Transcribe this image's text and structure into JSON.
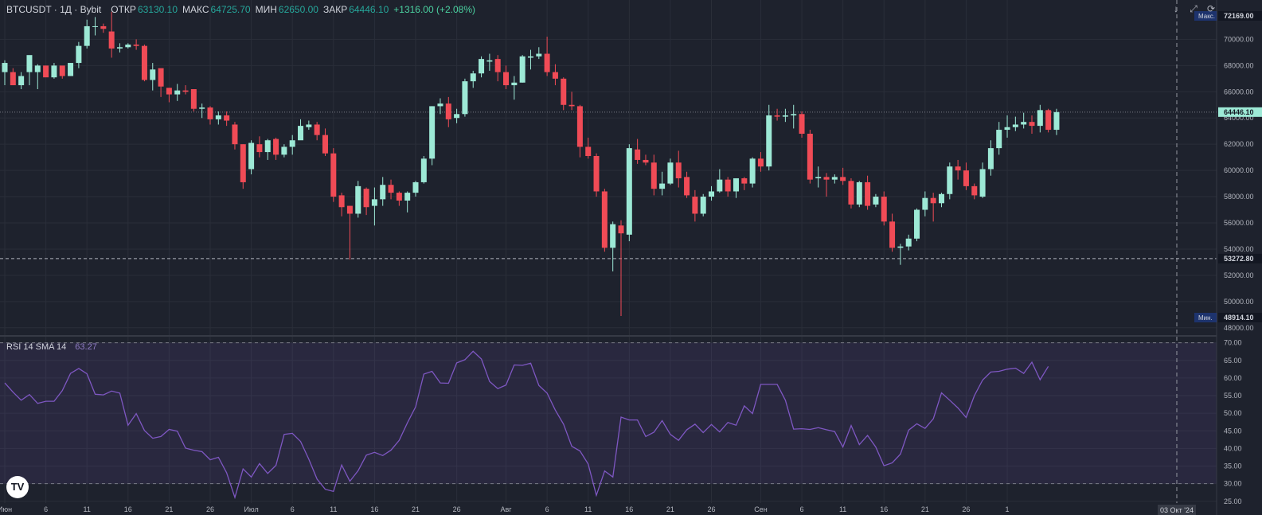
{
  "header": {
    "symbol": "BTCUSDT · 1Д · Bybit",
    "open_label": "ОТКР",
    "open_value": "63130.10",
    "high_label": "МАКС",
    "high_value": "64725.70",
    "low_label": "МИН",
    "low_value": "62650.00",
    "close_label": "ЗАКР",
    "close_value": "64446.10",
    "change": "+1316.00 (+2.08%)"
  },
  "rsi_legend": {
    "name": "RSI 14 SMA 14",
    "value": "63.27"
  },
  "price_tags": {
    "max_label": "Макс.",
    "max_value": "72169.00",
    "last_value": "64446.10",
    "line_value": "53272.80",
    "min_label": "Мин.",
    "min_value": "48914.10"
  },
  "icons": [
    "download-icon",
    "fullscreen-icon",
    "refresh-icon",
    "tradingview-logo-icon"
  ],
  "colors": {
    "up": "#9de9d6",
    "down": "#f04b56",
    "rsi": "#7e57c2",
    "background": "#1e222d",
    "grid": "#2a2e39"
  },
  "chart_data": [
    {
      "type": "candlestick",
      "title": "BTCUSDT · 1Д · Bybit",
      "ylim": [
        47500,
        73000
      ],
      "y_ticks": [
        "48000.00",
        "50000.00",
        "52000.00",
        "54000.00",
        "56000.00",
        "58000.00",
        "60000.00",
        "62000.00",
        "64000.00",
        "66000.00",
        "68000.00",
        "70000.00"
      ],
      "x_ticks": [
        "Июн",
        "6",
        "11",
        "16",
        "21",
        "26",
        "Июл",
        "6",
        "11",
        "16",
        "21",
        "26",
        "Авг",
        "6",
        "11",
        "16",
        "21",
        "26",
        "Сен",
        "6",
        "11",
        "16",
        "21",
        "26",
        "1"
      ],
      "x_tick_index": [
        0,
        5,
        10,
        15,
        20,
        25,
        30,
        35,
        40,
        45,
        50,
        55,
        61,
        66,
        71,
        76,
        81,
        86,
        92,
        97,
        102,
        107,
        112,
        117,
        122
      ],
      "x_cursor_label": "03 Окт '24",
      "horizontal_line": 53272.8,
      "candles": [
        [
          67500,
          68200,
          66500,
          68400
        ],
        [
          67500,
          66500,
          67000,
          67800
        ],
        [
          66500,
          67200,
          67500,
          66200
        ],
        [
          67500,
          68800,
          68400,
          66500
        ],
        [
          67500,
          68000,
          68100,
          66200
        ],
        [
          68000,
          67100,
          67200,
          68000
        ],
        [
          67100,
          68000,
          68200,
          67000
        ],
        [
          68000,
          67200,
          67500,
          67000
        ],
        [
          67200,
          68200,
          68200,
          67200
        ],
        [
          68200,
          69500,
          69800,
          67800
        ],
        [
          69500,
          71000,
          71500,
          69300
        ],
        [
          71000,
          71000,
          71700,
          70300
        ],
        [
          71000,
          70800,
          71200,
          70500
        ],
        [
          70600,
          69300,
          72100,
          68600
        ],
        [
          69300,
          69400,
          69700,
          69000
        ],
        [
          69400,
          69600,
          69700,
          69300
        ],
        [
          69600,
          69500,
          70000,
          69200
        ],
        [
          69500,
          66900,
          69600,
          66800
        ],
        [
          66900,
          67700,
          68200,
          66100
        ],
        [
          67800,
          66400,
          67100,
          65600
        ],
        [
          66300,
          65800,
          66300,
          65200
        ],
        [
          65800,
          66100,
          66600,
          65300
        ],
        [
          66100,
          66000,
          66500,
          65800
        ],
        [
          66200,
          64700,
          66100,
          64500
        ],
        [
          64700,
          64800,
          65100,
          64000
        ],
        [
          64800,
          63900,
          64900,
          63500
        ],
        [
          63900,
          64200,
          64500,
          63500
        ],
        [
          64200,
          63800,
          64500,
          63400
        ],
        [
          63500,
          62000,
          63700,
          61600
        ],
        [
          62000,
          59100,
          62000,
          58600
        ],
        [
          60100,
          62100,
          62300,
          59700
        ],
        [
          62000,
          61400,
          62600,
          61000
        ],
        [
          61400,
          62300,
          62400,
          60800
        ],
        [
          62400,
          61200,
          62500,
          60800
        ],
        [
          61200,
          61800,
          62000,
          61000
        ],
        [
          61800,
          62300,
          62700,
          61200
        ],
        [
          62300,
          63400,
          63900,
          62400
        ],
        [
          63300,
          63500,
          63800,
          63100
        ],
        [
          63500,
          62700,
          63700,
          62300
        ],
        [
          62700,
          61300,
          63200,
          61100
        ],
        [
          61300,
          58000,
          61700,
          57600
        ],
        [
          58100,
          57200,
          58300,
          56500
        ],
        [
          57300,
          56700,
          57300,
          53200
        ],
        [
          56700,
          58800,
          59200,
          56400
        ],
        [
          58600,
          57200,
          58700,
          56600
        ],
        [
          57300,
          57800,
          58700,
          55800
        ],
        [
          57800,
          58900,
          59500,
          57300
        ],
        [
          58900,
          58300,
          59300,
          57800
        ],
        [
          58300,
          57700,
          58400,
          57300
        ],
        [
          57700,
          58300,
          58400,
          56800
        ],
        [
          58300,
          59100,
          59200,
          58000
        ],
        [
          59100,
          60900,
          61100,
          59000
        ],
        [
          60900,
          64900,
          64900,
          60400
        ],
        [
          64900,
          65100,
          65500,
          64300
        ],
        [
          65100,
          63900,
          65600,
          63300
        ],
        [
          64000,
          64300,
          64700,
          63600
        ],
        [
          64300,
          66800,
          67000,
          64100
        ],
        [
          66800,
          67400,
          67600,
          66300
        ],
        [
          67400,
          68500,
          68700,
          67100
        ],
        [
          68300,
          68400,
          68900,
          67600
        ],
        [
          68500,
          67500,
          68800,
          66800
        ],
        [
          67500,
          66500,
          68000,
          66200
        ],
        [
          66500,
          66700,
          67200,
          65400
        ],
        [
          66700,
          68700,
          68800,
          66700
        ],
        [
          68600,
          68700,
          69200,
          67700
        ],
        [
          68700,
          68900,
          69400,
          68500
        ],
        [
          68900,
          67500,
          70200,
          67200
        ],
        [
          67500,
          67000,
          68100,
          66500
        ],
        [
          67000,
          65000,
          67100,
          64600
        ],
        [
          65000,
          64900,
          66000,
          64600
        ],
        [
          64900,
          61800,
          65000,
          61000
        ],
        [
          61800,
          61100,
          62500,
          60900
        ],
        [
          61100,
          58400,
          61300,
          58000
        ],
        [
          58400,
          54100,
          58600,
          53800
        ],
        [
          54100,
          55900,
          56100,
          52300
        ],
        [
          55800,
          55200,
          56200,
          48900
        ],
        [
          55100,
          61700,
          62000,
          54600
        ],
        [
          61600,
          60800,
          62400,
          60500
        ],
        [
          60800,
          60600,
          61200,
          60400
        ],
        [
          60600,
          58600,
          61200,
          58100
        ],
        [
          58600,
          59000,
          59900,
          58100
        ],
        [
          59000,
          60600,
          60900,
          58900
        ],
        [
          60600,
          59400,
          61500,
          58700
        ],
        [
          59500,
          58100,
          59900,
          57900
        ],
        [
          58000,
          56700,
          58500,
          56100
        ],
        [
          56700,
          58000,
          58200,
          56500
        ],
        [
          58000,
          58400,
          58800,
          57700
        ],
        [
          58400,
          59300,
          60100,
          58300
        ],
        [
          59300,
          58400,
          59500,
          58000
        ],
        [
          58400,
          59400,
          59400,
          57900
        ],
        [
          59400,
          59000,
          59500,
          58500
        ],
        [
          59000,
          60900,
          61000,
          58700
        ],
        [
          60900,
          60300,
          61400,
          59900
        ],
        [
          60300,
          64200,
          65000,
          60000
        ],
        [
          64200,
          64100,
          64700,
          63800
        ],
        [
          64100,
          64200,
          64700,
          63700
        ],
        [
          64200,
          64300,
          65000,
          63200
        ],
        [
          64300,
          62800,
          64500,
          62500
        ],
        [
          62800,
          59300,
          63100,
          59000
        ],
        [
          59400,
          59500,
          60300,
          58700
        ],
        [
          59500,
          59300,
          59800,
          58000
        ],
        [
          59300,
          59500,
          59700,
          59000
        ],
        [
          59500,
          59200,
          60200,
          58900
        ],
        [
          59200,
          57400,
          59400,
          57100
        ],
        [
          57400,
          59100,
          59200,
          57200
        ],
        [
          59100,
          57300,
          59600,
          57000
        ],
        [
          57400,
          58000,
          58200,
          57200
        ],
        [
          58000,
          56100,
          58400,
          55800
        ],
        [
          56100,
          54100,
          56700,
          53800
        ],
        [
          54100,
          54200,
          54400,
          52800
        ],
        [
          54200,
          54800,
          55100,
          53900
        ],
        [
          54800,
          57000,
          57100,
          54600
        ],
        [
          57000,
          57900,
          58400,
          56500
        ],
        [
          57900,
          57500,
          58300,
          56100
        ],
        [
          57500,
          58200,
          58300,
          57200
        ],
        [
          58200,
          60300,
          60600,
          57800
        ],
        [
          60300,
          60000,
          60800,
          59300
        ],
        [
          60000,
          58800,
          60600,
          58500
        ],
        [
          58800,
          58100,
          59000,
          57800
        ],
        [
          58000,
          60100,
          60600,
          57900
        ],
        [
          60100,
          61700,
          62300,
          59600
        ],
        [
          61700,
          63100,
          63700,
          61200
        ],
        [
          63100,
          63300,
          64200,
          62500
        ],
        [
          63300,
          63500,
          64100,
          63000
        ],
        [
          63500,
          63700,
          64400,
          63200
        ],
        [
          63700,
          63400,
          64200,
          62800
        ],
        [
          63400,
          64600,
          65000,
          62900
        ],
        [
          64600,
          63100,
          64700,
          62900
        ],
        [
          63100,
          64450,
          64700,
          62700
        ]
      ]
    },
    {
      "type": "line",
      "title": "RSI 14 SMA 14",
      "ylim": [
        24.5,
        71.5
      ],
      "y_ticks": [
        "70.00",
        "65.00",
        "60.00",
        "55.00",
        "50.00",
        "45.00",
        "40.00",
        "35.00",
        "30.00",
        "25.00"
      ],
      "bands": [
        30,
        70
      ],
      "series": [
        {
          "name": "RSI 14",
          "values": [
            58.6,
            56.0,
            53.7,
            55.3,
            52.8,
            53.4,
            53.4,
            56.4,
            61.3,
            62.7,
            61.2,
            55.4,
            55.2,
            56.3,
            55.7,
            46.6,
            49.9,
            45.1,
            42.9,
            43.4,
            45.4,
            44.9,
            40.1,
            39.5,
            39.1,
            36.8,
            37.5,
            33.1,
            26.1,
            34.2,
            31.9,
            35.7,
            32.9,
            35.2,
            44.0,
            44.3,
            42.0,
            37.0,
            31.3,
            28.4,
            27.8,
            35.3,
            30.7,
            33.7,
            38.1,
            38.9,
            38.0,
            39.5,
            42.3,
            47.3,
            51.8,
            61.1,
            61.9,
            58.6,
            58.5,
            64.3,
            65.2,
            67.6,
            65.4,
            59.0,
            57.0,
            58.0,
            63.7,
            63.6,
            64.2,
            57.9,
            55.7,
            50.9,
            46.9,
            40.6,
            39.3,
            35.6,
            26.7,
            33.6,
            31.9,
            48.9,
            48.1,
            48.1,
            43.4,
            44.6,
            47.9,
            44.0,
            42.3,
            45.3,
            46.9,
            44.5,
            46.8,
            44.7,
            47.4,
            46.6,
            52.1,
            49.9,
            58.2,
            58.2,
            58.2,
            53.7,
            45.5,
            45.6,
            45.4,
            45.9,
            45.3,
            44.8,
            40.4,
            46.5,
            41.1,
            43.7,
            40.4,
            35.1,
            35.9,
            38.4,
            45.2,
            47.0,
            45.7,
            48.4,
            55.8,
            53.7,
            51.5,
            48.8,
            55.0,
            59.4,
            61.7,
            61.9,
            62.5,
            62.8,
            61.3,
            64.5,
            59.5,
            63.3
          ]
        }
      ]
    }
  ]
}
